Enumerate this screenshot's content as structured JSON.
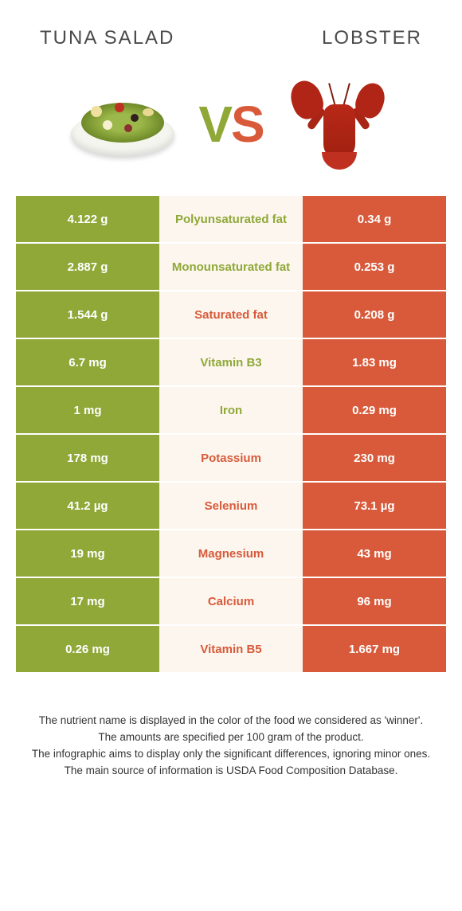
{
  "header": {
    "left_title": "TUNA SALAD",
    "right_title": "LOBSTER"
  },
  "vs": {
    "v": "V",
    "s": "S"
  },
  "colors": {
    "left": "#8fa838",
    "right": "#d85a3a",
    "mid_bg": "#fcf6ee",
    "background": "#ffffff",
    "text": "#333333"
  },
  "nutrients": [
    {
      "name": "Polyunsaturated fat",
      "left": "4.122 g",
      "right": "0.34 g",
      "winner": "left"
    },
    {
      "name": "Monounsaturated fat",
      "left": "2.887 g",
      "right": "0.253 g",
      "winner": "left"
    },
    {
      "name": "Saturated fat",
      "left": "1.544 g",
      "right": "0.208 g",
      "winner": "right"
    },
    {
      "name": "Vitamin B3",
      "left": "6.7 mg",
      "right": "1.83 mg",
      "winner": "left"
    },
    {
      "name": "Iron",
      "left": "1 mg",
      "right": "0.29 mg",
      "winner": "left"
    },
    {
      "name": "Potassium",
      "left": "178 mg",
      "right": "230 mg",
      "winner": "right"
    },
    {
      "name": "Selenium",
      "left": "41.2 µg",
      "right": "73.1 µg",
      "winner": "right"
    },
    {
      "name": "Magnesium",
      "left": "19 mg",
      "right": "43 mg",
      "winner": "right"
    },
    {
      "name": "Calcium",
      "left": "17 mg",
      "right": "96 mg",
      "winner": "right"
    },
    {
      "name": "Vitamin B5",
      "left": "0.26 mg",
      "right": "1.667 mg",
      "winner": "right"
    }
  ],
  "footer": {
    "line1": "The nutrient name is displayed in the color of the food we considered as 'winner'.",
    "line2": "The amounts are specified per 100 gram of the product.",
    "line3": "The infographic aims to display only the significant differences, ignoring minor ones.",
    "line4": "The main source of information is USDA Food Composition Database."
  }
}
